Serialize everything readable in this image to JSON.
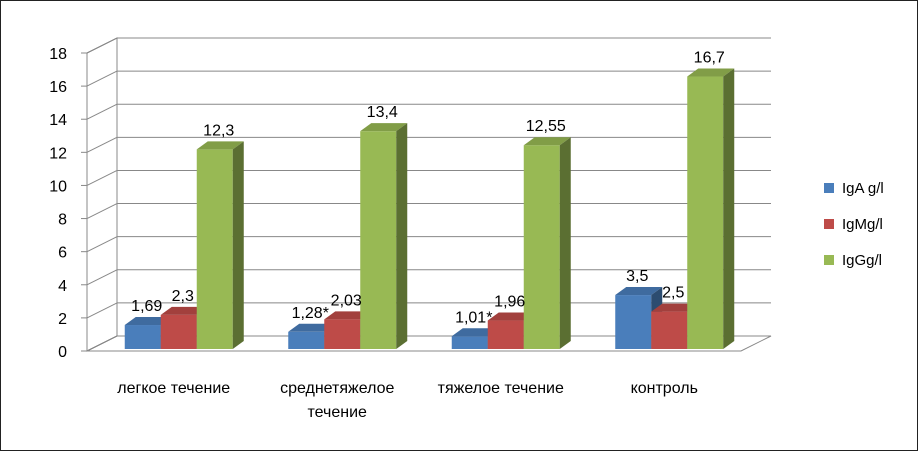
{
  "chart_data": {
    "type": "bar",
    "categories": [
      "легкое течение",
      "среднетяжелое течение",
      "тяжелое течение",
      "контроль"
    ],
    "category_lines": [
      [
        "легкое течение"
      ],
      [
        "среднетяжелое",
        "течение"
      ],
      [
        "тяжелое течение"
      ],
      [
        "контроль"
      ]
    ],
    "series": [
      {
        "name": "IgA g/l",
        "values": [
          1.69,
          1.28,
          1.01,
          3.5
        ],
        "labels": [
          "1,69",
          "1,28*",
          "1,01*",
          "3,5"
        ],
        "color": "#4a7ebb"
      },
      {
        "name": "IgMg/l",
        "values": [
          2.3,
          2.03,
          1.96,
          2.5
        ],
        "labels": [
          "2,3",
          "2,03",
          "1,96",
          "2,5"
        ],
        "color": "#be4b48"
      },
      {
        "name": "IgGg/l",
        "values": [
          12.3,
          13.4,
          12.55,
          16.7
        ],
        "labels": [
          "12,3",
          "13,4",
          "12,55",
          "16,7"
        ],
        "color": "#98b954"
      }
    ],
    "yticks": [
      "0",
      "2",
      "4",
      "6",
      "8",
      "10",
      "12",
      "14",
      "16",
      "18"
    ],
    "ylim": [
      0,
      18
    ],
    "grid": true,
    "legend_position": "right",
    "title": "",
    "xlabel": "",
    "ylabel": ""
  }
}
